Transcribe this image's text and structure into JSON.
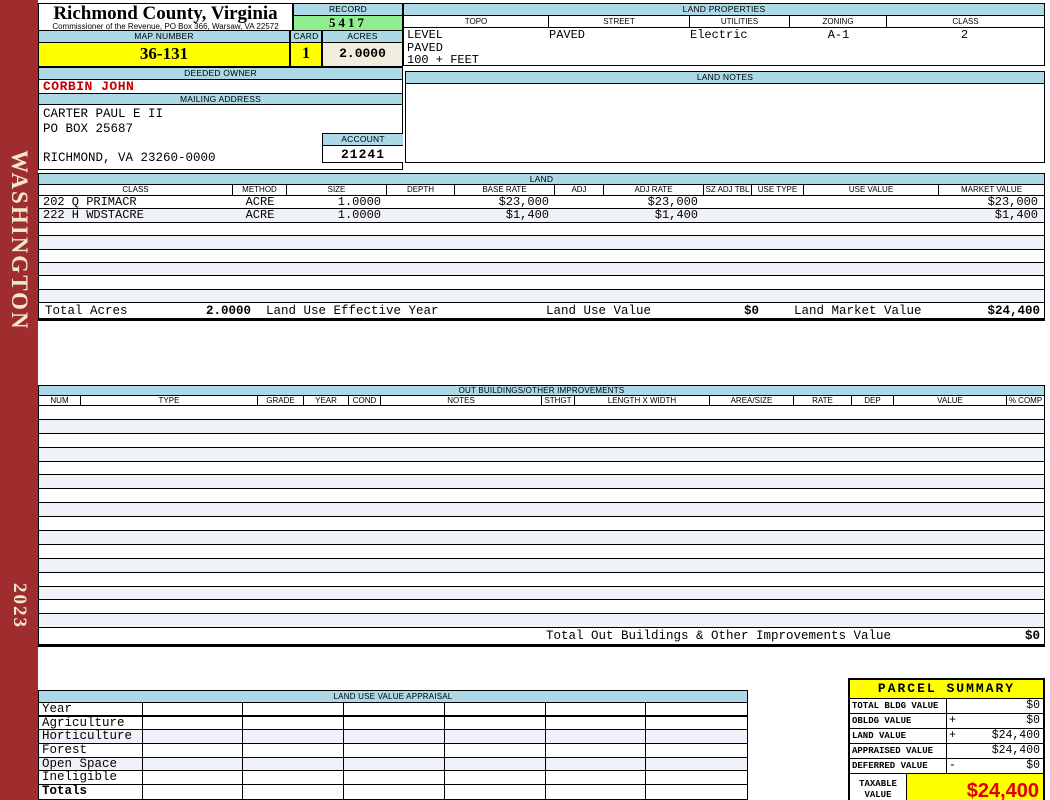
{
  "sidebar": {
    "district": "WASHINGTON",
    "year": "2023"
  },
  "header": {
    "county": "Richmond County, Virginia",
    "office": "Commissioner of the Revenue, PO Box 366, Warsaw, VA 22572",
    "record_label": "RECORD",
    "record": "5417",
    "map_number_label": "MAP NUMBER",
    "map_number": "36-131",
    "card_label": "CARD",
    "card": "1",
    "acres_label": "ACRES",
    "acres": "2.0000"
  },
  "land_properties": {
    "title": "LAND PROPERTIES",
    "columns": [
      "TOPO",
      "STREET",
      "UTILITIES",
      "ZONING",
      "CLASS"
    ],
    "topo_lines": "LEVEL\nPAVED\n100 + FEET",
    "street": "PAVED",
    "utilities": "Electric",
    "zoning": "A-1",
    "class": "2"
  },
  "owner": {
    "deeded_owner_label": "DEEDED OWNER",
    "deeded_owner": "CORBIN JOHN",
    "mailing_address_label": "MAILING ADDRESS",
    "address": "CARTER PAUL E II\nPO BOX 25687\n\nRICHMOND, VA 23260-0000",
    "account_label": "ACCOUNT",
    "account": "21241"
  },
  "land_notes": {
    "title": "LAND NOTES"
  },
  "land": {
    "title": "LAND",
    "columns": [
      "CLASS",
      "METHOD",
      "SIZE",
      "DEPTH",
      "BASE RATE",
      "ADJ",
      "ADJ RATE",
      "SZ ADJ TBL",
      "USE TYPE",
      "USE VALUE",
      "MARKET VALUE"
    ],
    "rows": [
      [
        "202 Q PRIMACR",
        "ACRE",
        "1.0000",
        "",
        "$23,000",
        "",
        "$23,000",
        "",
        "",
        "",
        "$23,000"
      ],
      [
        "222 H WDSTACRE",
        "ACRE",
        "1.0000",
        "",
        "$1,400",
        "",
        "$1,400",
        "",
        "",
        "",
        "$1,400"
      ]
    ],
    "empty_row_count": 6,
    "totals": {
      "total_acres_label": "Total Acres",
      "total_acres": "2.0000",
      "effective_year_label": "Land Use Effective Year",
      "land_use_value_label": "Land Use Value",
      "land_use_value": "$0",
      "land_market_value_label": "Land Market Value",
      "land_market_value": "$24,400"
    }
  },
  "out_buildings": {
    "title": "OUT BUILDINGS/OTHER IMPROVEMENTS",
    "columns": [
      "NUM",
      "TYPE",
      "GRADE",
      "YEAR",
      "COND",
      "NOTES",
      "STHGT",
      "LENGTH X WIDTH",
      "AREA/SIZE",
      "RATE",
      "DEP",
      "VALUE",
      "% COMP"
    ],
    "empty_row_count": 16,
    "total_label": "Total Out Buildings & Other Improvements Value",
    "total_value": "$0"
  },
  "land_use_appraisal": {
    "title": "LAND USE VALUE APPRAISAL",
    "row_labels": [
      "Year",
      "Agriculture",
      "Horticulture",
      "Forest",
      "Open Space",
      "Ineligible",
      "Totals"
    ],
    "column_count": 6
  },
  "parcel_summary": {
    "title": "PARCEL SUMMARY",
    "rows": [
      {
        "label": "TOTAL BLDG VALUE",
        "op": "",
        "value": "$0"
      },
      {
        "label": "OBLDG VALUE",
        "op": "+",
        "value": "$0"
      },
      {
        "label": "LAND VALUE",
        "op": "+",
        "value": "$24,400"
      },
      {
        "label": "APPRAISED VALUE",
        "op": "",
        "value": "$24,400"
      },
      {
        "label": "DEFERRED VALUE",
        "op": "-",
        "value": "$0"
      }
    ],
    "taxable_label": "TAXABLE\nVALUE",
    "taxable_value": "$24,400"
  },
  "colors": {
    "header_bar": "#ADD8E6",
    "record_bg": "#90EE90",
    "highlight_yellow": "#FFFF00",
    "acres_bg": "#F0EEDC",
    "spine_red": "#9F2D2D",
    "owner_red": "#C00000",
    "taxable_red": "#E00000",
    "row_stripe": "#F0F2F9"
  }
}
